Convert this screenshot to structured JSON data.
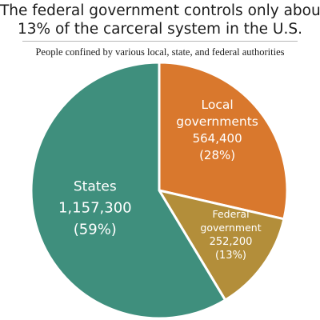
{
  "title_lines": [
    "The federal government controls only about",
    "13% of the carceral system in the U.S."
  ],
  "subtitle": "People confined by various local, state, and federal authorities",
  "chart_data": {
    "type": "pie",
    "slices": [
      {
        "label_lines": [
          "Local",
          "governments"
        ],
        "value": 564400,
        "value_text": "564,400",
        "percent_text": "(28%)",
        "color": "#d9782d"
      },
      {
        "label_lines": [
          "Federal",
          "government"
        ],
        "value": 252200,
        "value_text": "252,200",
        "percent_text": "(13%)",
        "color": "#b38e3a"
      },
      {
        "label_lines": [
          "States"
        ],
        "value": 1157300,
        "value_text": "1,157,300",
        "percent_text": "(59%)",
        "color": "#3f8f7d"
      }
    ]
  }
}
